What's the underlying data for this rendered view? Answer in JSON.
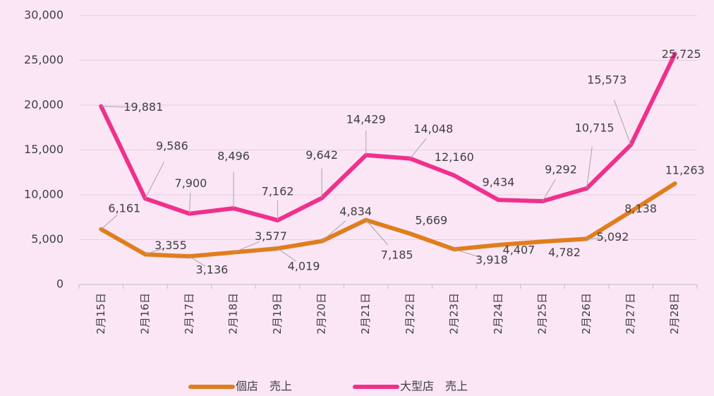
{
  "chart_data": {
    "type": "line",
    "categories": [
      "2月15日",
      "2月16日",
      "2月17日",
      "2月18日",
      "2月19日",
      "2月20日",
      "2月21日",
      "2月22日",
      "2月23日",
      "2月24日",
      "2月25日",
      "2月26日",
      "2月27日",
      "2月28日"
    ],
    "series": [
      {
        "name": "個店　売上",
        "color": "#e07e1c",
        "values": [
          6161,
          3355,
          3136,
          3577,
          4019,
          4834,
          7185,
          5669,
          3918,
          4407,
          4782,
          5092,
          8138,
          11263
        ],
        "value_labels": [
          "6,161",
          "3,355",
          "3,136",
          "3,577",
          "4,019",
          "4,834",
          "7,185",
          "5,669",
          "3,918",
          "4,407",
          "4,782",
          "5,092",
          "8,138",
          "11,263"
        ]
      },
      {
        "name": "大型店　売上",
        "color": "#f0308c",
        "values": [
          19881,
          9586,
          7900,
          8496,
          7162,
          9642,
          14429,
          14048,
          12160,
          9434,
          9292,
          10715,
          15573,
          25725
        ],
        "value_labels": [
          "19,881",
          "9,586",
          "7,900",
          "8,496",
          "7,162",
          "9,642",
          "14,429",
          "14,048",
          "12,160",
          "9,434",
          "9,292",
          "10,715",
          "15,573",
          "25,725"
        ]
      }
    ],
    "ylim": [
      0,
      30000
    ],
    "yticks": [
      0,
      {
        "value": 5000,
        "label": "5,000"
      },
      {
        "value": 10000,
        "label": "10,000"
      },
      {
        "value": 15000,
        "label": "15,000"
      },
      {
        "value": 20000,
        "label": "20,000"
      },
      {
        "value": 25000,
        "label": "25,000"
      },
      {
        "value": 30000,
        "label": "30,000"
      }
    ],
    "grid": true,
    "legend": "bottom"
  }
}
